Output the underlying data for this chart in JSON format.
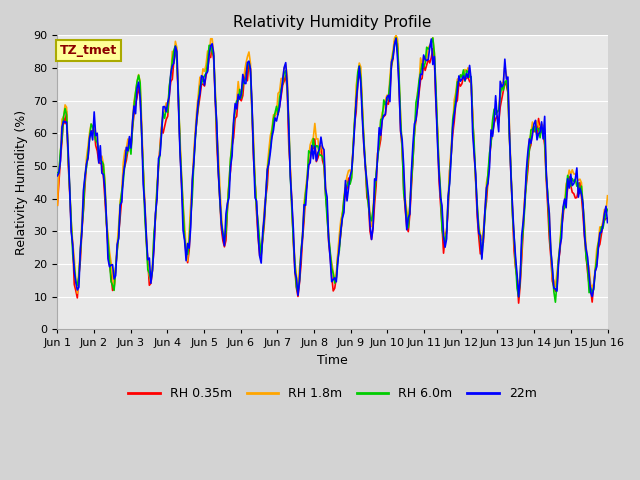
{
  "title": "Relativity Humidity Profile",
  "ylabel": "Relativity Humidity (%)",
  "xlabel": "Time",
  "annotation": "TZ_tmet",
  "ylim": [
    0,
    90
  ],
  "yticks": [
    0,
    10,
    20,
    30,
    40,
    50,
    60,
    70,
    80,
    90
  ],
  "xtick_labels": [
    "Jun 1",
    "Jun 2",
    "Jun 3",
    "Jun 4",
    "Jun 5",
    "Jun 6",
    "Jun 7",
    "Jun 8",
    "Jun 9",
    "Jun 10",
    "Jun 11",
    "Jun 12",
    "Jun 13",
    "Jun 14",
    "Jun 15",
    "Jun 16"
  ],
  "colors": {
    "RH 0.35m": "#ff0000",
    "RH 1.8m": "#ffa500",
    "RH 6.0m": "#00cc00",
    "22m": "#0000ff"
  },
  "line_width": 1.2,
  "fig_bg_color": "#d3d3d3",
  "plot_bg_color": "#e8e8e8",
  "annotation_box_color": "#ffff99",
  "annotation_border_color": "#aaaa00",
  "annotation_text_color": "#8b0000",
  "grid_color": "#ffffff",
  "title_fontsize": 11,
  "axis_label_fontsize": 9,
  "tick_fontsize": 8,
  "legend_fontsize": 9
}
